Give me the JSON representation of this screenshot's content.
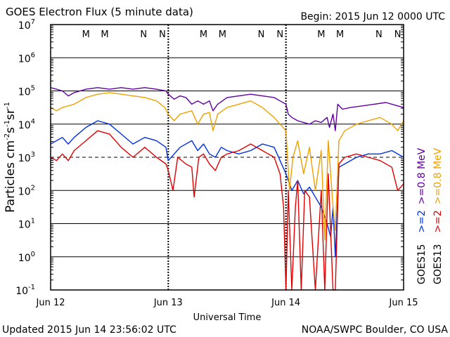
{
  "chart_data": {
    "type": "line",
    "title": "GOES Electron Flux (5 minute data)",
    "begin_label": "Begin: 2015 Jun 12 0000 UTC",
    "xlabel": "Universal Time",
    "ylabel_main": "Particles cm",
    "ylabel_sup1": "-2",
    "ylabel_mid1": "s",
    "ylabel_sup2": "-1",
    "ylabel_mid2": "sr",
    "ylabel_sup3": "-1",
    "x_ticks": [
      "Jun 12",
      "Jun 13",
      "Jun 14",
      "Jun 15"
    ],
    "y_tick_base": "10",
    "y_tick_exponents": [
      "-1",
      "0",
      "1",
      "2",
      "3",
      "4",
      "5",
      "6",
      "7"
    ],
    "ylim_exp": [
      -1,
      7
    ],
    "xlim_days": [
      0,
      3
    ],
    "dashed_reference_exp": 3,
    "mn_markers": [
      {
        "label": "M",
        "day": 0.3,
        "color": "#e00000"
      },
      {
        "label": "M",
        "day": 0.46,
        "color": "#0000d0"
      },
      {
        "label": "N",
        "day": 0.79,
        "color": "#e00000"
      },
      {
        "label": "N",
        "day": 0.95,
        "color": "#0000d0"
      },
      {
        "label": "M",
        "day": 1.3,
        "color": "#e00000"
      },
      {
        "label": "M",
        "day": 1.46,
        "color": "#0000d0"
      },
      {
        "label": "N",
        "day": 1.79,
        "color": "#e00000"
      },
      {
        "label": "N",
        "day": 1.95,
        "color": "#0000d0"
      },
      {
        "label": "M",
        "day": 2.3,
        "color": "#e00000"
      },
      {
        "label": "M",
        "day": 2.46,
        "color": "#0000d0"
      },
      {
        "label": "N",
        "day": 2.79,
        "color": "#e00000"
      },
      {
        "label": "N",
        "day": 2.95,
        "color": "#0000d0"
      }
    ],
    "legend": {
      "goes15_label": "GOES15",
      "goes13_label": "GOES13",
      "g15_low": ">=0.8 MeV",
      "g15_high": ">=2",
      "g13_low": ">=0.8 MeV",
      "g13_high": ">=2",
      "colors": {
        "g15_low": "#6000a0",
        "g15_high": "#0030e0",
        "g13_low": "#f0a000",
        "g13_high": "#e00000"
      }
    },
    "series": [
      {
        "name": ">=0.8 MeV",
        "color": "#6000a0",
        "points": [
          [
            0,
            5.1
          ],
          [
            0.05,
            5.05
          ],
          [
            0.1,
            5.0
          ],
          [
            0.15,
            4.85
          ],
          [
            0.2,
            4.95
          ],
          [
            0.3,
            5.05
          ],
          [
            0.4,
            5.1
          ],
          [
            0.5,
            5.05
          ],
          [
            0.6,
            5.1
          ],
          [
            0.7,
            5.05
          ],
          [
            0.8,
            5.1
          ],
          [
            0.9,
            5.05
          ],
          [
            0.98,
            5.0
          ],
          [
            1.0,
            4.9
          ],
          [
            1.05,
            4.75
          ],
          [
            1.1,
            4.85
          ],
          [
            1.15,
            4.8
          ],
          [
            1.2,
            4.6
          ],
          [
            1.25,
            4.7
          ],
          [
            1.3,
            4.6
          ],
          [
            1.35,
            4.7
          ],
          [
            1.38,
            4.4
          ],
          [
            1.42,
            4.6
          ],
          [
            1.5,
            4.8
          ],
          [
            1.6,
            4.85
          ],
          [
            1.7,
            4.9
          ],
          [
            1.8,
            4.85
          ],
          [
            1.9,
            4.8
          ],
          [
            1.95,
            4.7
          ],
          [
            2.0,
            4.6
          ],
          [
            2.02,
            4.3
          ],
          [
            2.05,
            4.2
          ],
          [
            2.1,
            4.1
          ],
          [
            2.15,
            4.05
          ],
          [
            2.2,
            4.0
          ],
          [
            2.25,
            4.1
          ],
          [
            2.3,
            4.05
          ],
          [
            2.35,
            4.2
          ],
          [
            2.37,
            3.9
          ],
          [
            2.4,
            4.3
          ],
          [
            2.42,
            3.8
          ],
          [
            2.44,
            4.6
          ],
          [
            2.48,
            4.45
          ],
          [
            2.55,
            4.5
          ],
          [
            2.65,
            4.55
          ],
          [
            2.75,
            4.6
          ],
          [
            2.85,
            4.65
          ],
          [
            2.95,
            4.55
          ],
          [
            3.0,
            4.5
          ]
        ]
      },
      {
        "name": ">=2",
        "color": "#0030e0",
        "points": [
          [
            0,
            3.4
          ],
          [
            0.05,
            3.5
          ],
          [
            0.1,
            3.6
          ],
          [
            0.15,
            3.4
          ],
          [
            0.2,
            3.6
          ],
          [
            0.3,
            3.9
          ],
          [
            0.4,
            4.1
          ],
          [
            0.5,
            4.0
          ],
          [
            0.6,
            3.7
          ],
          [
            0.7,
            3.4
          ],
          [
            0.8,
            3.6
          ],
          [
            0.9,
            3.5
          ],
          [
            0.98,
            3.3
          ],
          [
            1.0,
            2.9
          ],
          [
            1.05,
            3.1
          ],
          [
            1.1,
            3.3
          ],
          [
            1.2,
            3.5
          ],
          [
            1.25,
            3.2
          ],
          [
            1.3,
            3.4
          ],
          [
            1.35,
            3.1
          ],
          [
            1.4,
            3.0
          ],
          [
            1.45,
            3.3
          ],
          [
            1.5,
            3.2
          ],
          [
            1.6,
            3.1
          ],
          [
            1.7,
            3.2
          ],
          [
            1.8,
            3.4
          ],
          [
            1.9,
            3.3
          ],
          [
            1.95,
            2.9
          ],
          [
            2.0,
            2.5
          ],
          [
            2.05,
            2.0
          ],
          [
            2.1,
            2.3
          ],
          [
            2.15,
            1.9
          ],
          [
            2.2,
            2.1
          ],
          [
            2.25,
            1.8
          ],
          [
            2.3,
            1.5
          ],
          [
            2.35,
            1.0
          ],
          [
            2.38,
            0.6
          ],
          [
            2.4,
            1.5
          ],
          [
            2.42,
            0.0
          ],
          [
            2.45,
            2.7
          ],
          [
            2.5,
            2.8
          ],
          [
            2.6,
            3.0
          ],
          [
            2.7,
            3.1
          ],
          [
            2.8,
            3.1
          ],
          [
            2.9,
            3.2
          ],
          [
            3.0,
            3.0
          ]
        ]
      },
      {
        "name": ">=0.8 MeV",
        "color": "#f0a000",
        "points": [
          [
            0,
            4.5
          ],
          [
            0.05,
            4.4
          ],
          [
            0.1,
            4.5
          ],
          [
            0.2,
            4.6
          ],
          [
            0.3,
            4.8
          ],
          [
            0.4,
            4.9
          ],
          [
            0.5,
            4.95
          ],
          [
            0.6,
            4.9
          ],
          [
            0.7,
            4.85
          ],
          [
            0.8,
            4.8
          ],
          [
            0.9,
            4.7
          ],
          [
            0.97,
            4.5
          ],
          [
            1.0,
            4.3
          ],
          [
            1.05,
            4.1
          ],
          [
            1.1,
            4.3
          ],
          [
            1.2,
            4.4
          ],
          [
            1.25,
            4.0
          ],
          [
            1.3,
            4.3
          ],
          [
            1.35,
            4.35
          ],
          [
            1.38,
            3.8
          ],
          [
            1.42,
            4.3
          ],
          [
            1.5,
            4.5
          ],
          [
            1.6,
            4.6
          ],
          [
            1.7,
            4.7
          ],
          [
            1.8,
            4.5
          ],
          [
            1.9,
            4.2
          ],
          [
            1.95,
            4.0
          ],
          [
            2.0,
            3.8
          ],
          [
            2.03,
            2.0
          ],
          [
            2.06,
            3.0
          ],
          [
            2.1,
            3.5
          ],
          [
            2.15,
            2.5
          ],
          [
            2.2,
            3.3
          ],
          [
            2.25,
            2.0
          ],
          [
            2.3,
            3.2
          ],
          [
            2.33,
            0.5
          ],
          [
            2.36,
            3.5
          ],
          [
            2.4,
            1.5
          ],
          [
            2.42,
            0.8
          ],
          [
            2.45,
            3.5
          ],
          [
            2.5,
            3.8
          ],
          [
            2.6,
            4.0
          ],
          [
            2.7,
            4.1
          ],
          [
            2.8,
            4.2
          ],
          [
            2.9,
            4.0
          ],
          [
            2.95,
            3.8
          ],
          [
            3.0,
            4.1
          ]
        ]
      },
      {
        "name": ">=2",
        "color": "#e00000",
        "points": [
          [
            0,
            3.0
          ],
          [
            0.05,
            2.9
          ],
          [
            0.1,
            3.1
          ],
          [
            0.15,
            2.9
          ],
          [
            0.2,
            3.2
          ],
          [
            0.3,
            3.5
          ],
          [
            0.4,
            3.8
          ],
          [
            0.5,
            3.7
          ],
          [
            0.6,
            3.3
          ],
          [
            0.7,
            3.0
          ],
          [
            0.8,
            3.3
          ],
          [
            0.9,
            3.0
          ],
          [
            0.98,
            2.8
          ],
          [
            1.0,
            2.6
          ],
          [
            1.04,
            2.0
          ],
          [
            1.08,
            3.0
          ],
          [
            1.15,
            2.8
          ],
          [
            1.2,
            2.7
          ],
          [
            1.22,
            1.8
          ],
          [
            1.26,
            3.0
          ],
          [
            1.3,
            3.1
          ],
          [
            1.35,
            2.8
          ],
          [
            1.4,
            2.6
          ],
          [
            1.45,
            3.0
          ],
          [
            1.5,
            3.1
          ],
          [
            1.6,
            3.2
          ],
          [
            1.7,
            3.4
          ],
          [
            1.8,
            3.2
          ],
          [
            1.9,
            3.0
          ],
          [
            1.95,
            2.5
          ],
          [
            1.98,
            1.5
          ],
          [
            2.0,
            -1.0
          ],
          [
            2.02,
            2.0
          ],
          [
            2.05,
            -1.0
          ],
          [
            2.08,
            1.5
          ],
          [
            2.1,
            2.3
          ],
          [
            2.13,
            -1.0
          ],
          [
            2.16,
            2.0
          ],
          [
            2.2,
            1.8
          ],
          [
            2.25,
            -1.0
          ],
          [
            2.3,
            2.0
          ],
          [
            2.33,
            -1.0
          ],
          [
            2.36,
            2.5
          ],
          [
            2.4,
            -1.0
          ],
          [
            2.42,
            -1.0
          ],
          [
            2.45,
            2.8
          ],
          [
            2.5,
            3.0
          ],
          [
            2.6,
            3.1
          ],
          [
            2.7,
            3.0
          ],
          [
            2.8,
            2.9
          ],
          [
            2.9,
            2.7
          ],
          [
            2.95,
            2.0
          ],
          [
            3.0,
            2.2
          ]
        ]
      }
    ]
  },
  "footer": {
    "updated": "Updated 2015 Jun 14 23:56:02 UTC",
    "source": "NOAA/SWPC Boulder, CO USA"
  }
}
